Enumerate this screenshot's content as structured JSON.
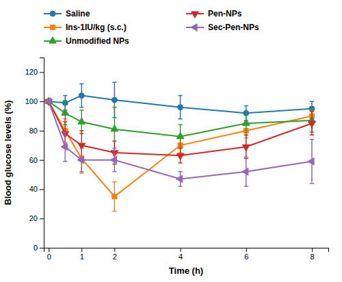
{
  "chart_data": {
    "type": "line",
    "xlabel": "Time (h)",
    "ylabel": "Blood glucose levels (%)",
    "x": [
      0,
      0.5,
      1,
      2,
      4,
      6,
      8
    ],
    "series": [
      {
        "name": "Saline",
        "marker": "circle",
        "values": [
          100,
          99,
          104,
          101,
          96,
          92,
          95
        ],
        "yerr": [
          0,
          5,
          8,
          12,
          8,
          5,
          5
        ]
      },
      {
        "name": "Ins-1IU/kg (s.c.)",
        "marker": "square",
        "values": [
          100,
          80,
          61,
          35,
          70,
          80,
          90
        ],
        "yerr": [
          0,
          8,
          10,
          10,
          5,
          5,
          5
        ]
      },
      {
        "name": "Unmodified NPs",
        "marker": "triangle-up",
        "values": [
          100,
          92,
          86,
          81,
          76,
          85,
          87
        ],
        "yerr": [
          0,
          8,
          8,
          15,
          8,
          8,
          8
        ]
      },
      {
        "name": "Pen-NPs",
        "marker": "triangle-down",
        "values": [
          100,
          78,
          70,
          65,
          63,
          69,
          85
        ],
        "yerr": [
          0,
          8,
          10,
          8,
          5,
          8,
          8
        ]
      },
      {
        "name": "Sec-Pen-NPs",
        "marker": "triangle-left",
        "values": [
          100,
          69,
          60,
          60,
          47,
          52,
          59
        ],
        "yerr": [
          0,
          10,
          8,
          8,
          5,
          10,
          15
        ]
      }
    ],
    "xlim": [
      -0.15,
      8.5
    ],
    "ylim": [
      0,
      130
    ],
    "xticks": [
      0,
      1,
      2,
      4,
      6,
      8
    ],
    "yticks": [
      0,
      20,
      40,
      60,
      80,
      100,
      120
    ],
    "grid": false,
    "legend": "top"
  }
}
